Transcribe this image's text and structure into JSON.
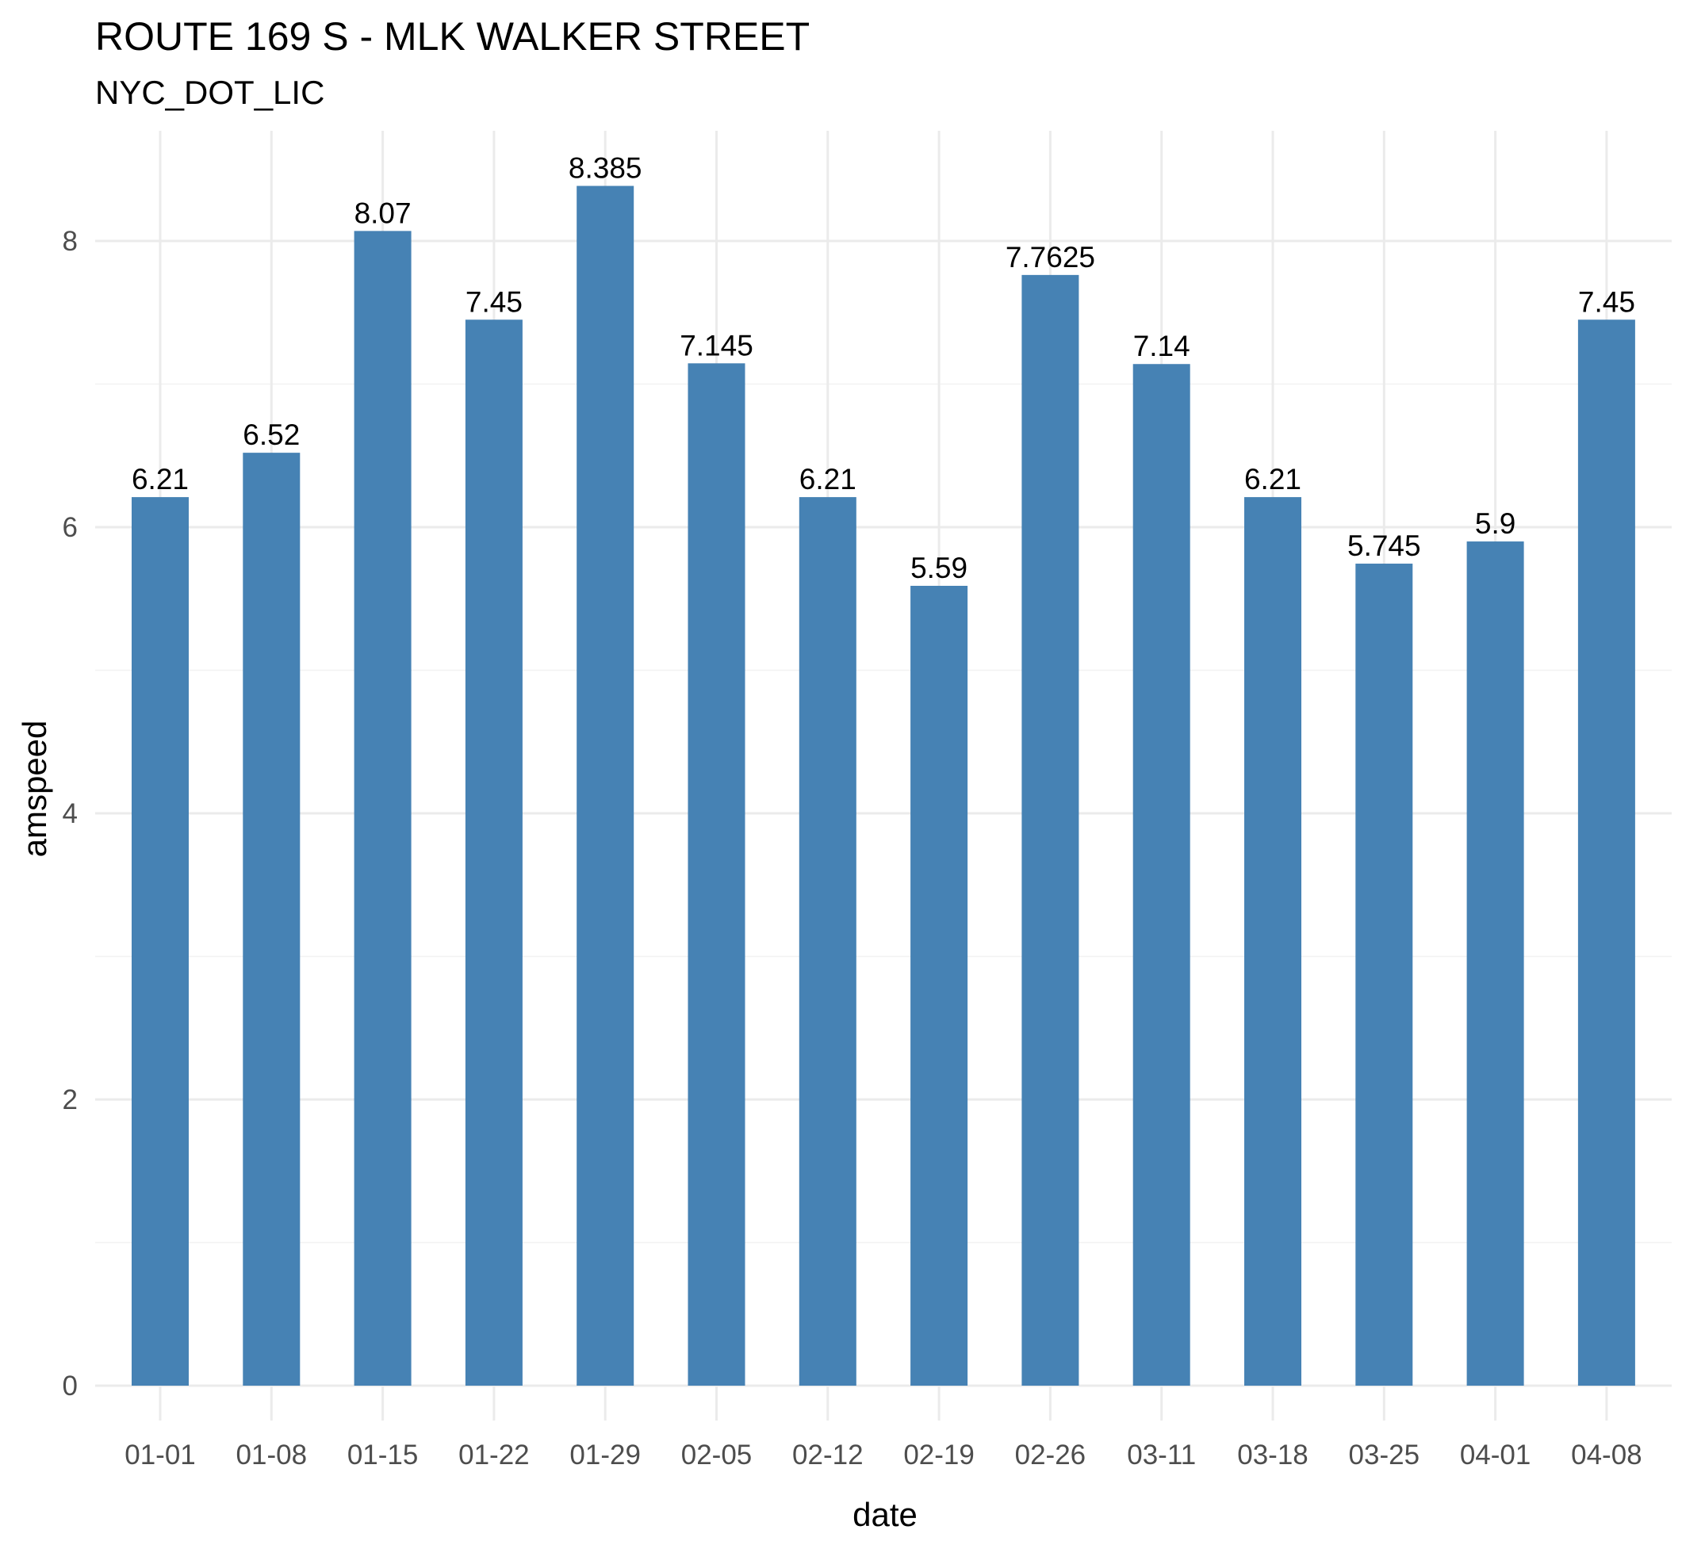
{
  "chart_data": {
    "type": "bar",
    "title": "ROUTE 169 S - MLK WALKER STREET",
    "subtitle": "NYC_DOT_LIC",
    "xlabel": "date",
    "ylabel": "amspeed",
    "categories": [
      "01-01",
      "01-08",
      "01-15",
      "01-22",
      "01-29",
      "02-05",
      "02-12",
      "02-19",
      "02-26",
      "03-11",
      "03-18",
      "03-25",
      "04-01",
      "04-08"
    ],
    "values": [
      6.21,
      6.52,
      8.07,
      7.45,
      8.385,
      7.145,
      6.21,
      5.59,
      7.7625,
      7.14,
      6.21,
      5.745,
      5.9,
      7.45
    ],
    "data_labels": [
      "6.21",
      "6.52",
      "8.07",
      "7.45",
      "8.385",
      "7.145",
      "6.21",
      "5.59",
      "7.7625",
      "7.14",
      "6.21",
      "5.745",
      "5.9",
      "7.45"
    ],
    "ylim": [
      0,
      8.7
    ],
    "y_ticks": [
      0,
      2,
      4,
      6,
      8
    ],
    "y_tick_labels": [
      "0",
      "2",
      "4",
      "6",
      "8"
    ],
    "grid": true,
    "legend": "none",
    "bar_color": "#4682b4",
    "grid_major_color": "#ebebeb",
    "grid_minor_color": "#f2f2f2"
  }
}
